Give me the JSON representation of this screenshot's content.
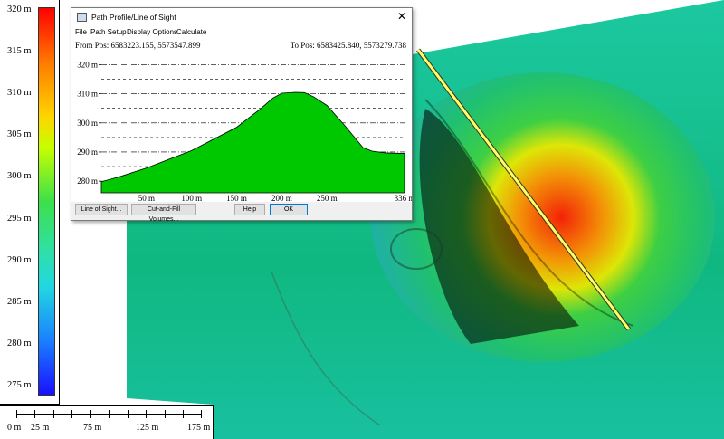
{
  "legend": {
    "ticks": [
      "320 m",
      "315 m",
      "310 m",
      "305 m",
      "300 m",
      "295 m",
      "290 m",
      "285 m",
      "280 m",
      "275 m"
    ]
  },
  "scale_bar": {
    "labels": [
      "0 m",
      "25 m",
      "75 m",
      "125 m",
      "175 m"
    ]
  },
  "dialog": {
    "title": "Path Profile/Line of Sight",
    "close_glyph": "✕",
    "menu": [
      "File",
      "Path Setup",
      "Display Options",
      "Calculate"
    ],
    "from_pos": "From Pos: 6583223.155, 5573547.899",
    "to_pos": "To Pos: 6583425.840, 5573279.738",
    "buttons": {
      "line_of_sight": "Line of Sight...",
      "cut_fill": "Cut-and-Fill Volumes...",
      "help": "Help",
      "ok": "OK"
    }
  },
  "chart_data": {
    "type": "area",
    "ylabels": [
      "320 m",
      "310 m",
      "300 m",
      "290 m",
      "280 m"
    ],
    "xlabels": [
      "50 m",
      "100 m",
      "150 m",
      "200 m",
      "250 m",
      "336 m"
    ],
    "ylim": [
      276,
      322
    ],
    "xlim": [
      0,
      336
    ],
    "x": [
      0,
      20,
      50,
      100,
      150,
      175,
      190,
      200,
      215,
      225,
      235,
      250,
      270,
      290,
      300,
      315,
      336
    ],
    "y": [
      279.8,
      281.5,
      284.5,
      290.5,
      298.5,
      304.5,
      308.5,
      310.2,
      310.5,
      310.4,
      309,
      306,
      299,
      291.5,
      290.3,
      289.7,
      289.5
    ],
    "fill_color": "#00c800",
    "grid": "horizontal dashed"
  }
}
